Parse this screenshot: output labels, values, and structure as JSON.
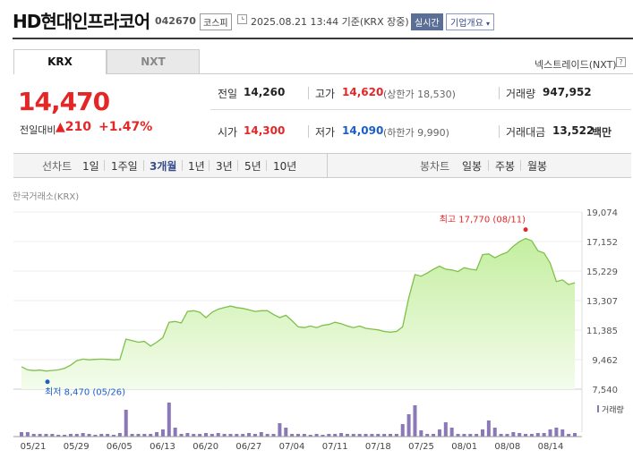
{
  "header": {
    "name": "HD현대인프라코어",
    "code": "042670",
    "market": "코스피",
    "datetime": "2025.08.21 13:44 기준(KRX 장중)",
    "realtime": "실시간",
    "overview": "기업개요",
    "overview_icon": "chevron-down-icon"
  },
  "tabs": [
    {
      "label": "KRX",
      "active": true
    },
    {
      "label": "NXT",
      "active": false
    }
  ],
  "nextrade": "넥스트레이드(NXT)",
  "help_icon": "?",
  "quote": {
    "price": "14,470",
    "change_label": "전일대비",
    "change": "▲210",
    "change_pct": "+1.47%",
    "prev_close_label": "전일",
    "prev_close": "14,260",
    "high_label": "고가",
    "high": "14,620",
    "upper_limit": "(상한가 18,530)",
    "volume_label": "거래량",
    "volume": "947,952",
    "open_label": "시가",
    "open": "14,300",
    "low_label": "저가",
    "low": "14,090",
    "lower_limit": "(하한가 9,990)",
    "value_label": "거래대금",
    "value": "13,522",
    "value_unit": "백만"
  },
  "period": {
    "line_label": "선차트",
    "line_options": [
      "1일",
      "1주일",
      "3개월",
      "1년",
      "3년",
      "5년",
      "10년"
    ],
    "active": "3개월",
    "candle_label": "봉차트",
    "candle_options": [
      "일봉",
      "주봉",
      "월봉"
    ]
  },
  "source_label": "한국거래소(KRX)",
  "colors": {
    "up": "#e42626",
    "down": "#1a5ec7",
    "line": "#7fc04a",
    "volume": "#8a78b8"
  },
  "chart_data": {
    "type": "area",
    "y_ticks": [
      "19,074",
      "17,152",
      "15,229",
      "13,307",
      "11,385",
      "9,462",
      "7,540"
    ],
    "ylim": [
      7540,
      19074
    ],
    "x_ticks": [
      "05/21",
      "05/29",
      "06/05",
      "06/13",
      "06/20",
      "06/27",
      "07/04",
      "07/11",
      "07/18",
      "07/25",
      "08/01",
      "08/08",
      "08/14"
    ],
    "max_label": "최고 17,770 (08/11)",
    "min_label": "최저 8,470 (05/26)",
    "volume_legend": "거래량",
    "values": [
      9000,
      8800,
      8750,
      8780,
      8720,
      8760,
      8800,
      8900,
      9100,
      9400,
      9500,
      9450,
      9480,
      9500,
      9480,
      9450,
      9470,
      10800,
      10700,
      10600,
      10650,
      10350,
      10600,
      10900,
      11900,
      11950,
      11850,
      12600,
      12650,
      12550,
      12200,
      12550,
      12750,
      12850,
      12950,
      12850,
      12800,
      12700,
      12600,
      12650,
      12650,
      12400,
      12200,
      12350,
      12000,
      11600,
      11550,
      11650,
      11550,
      11700,
      11750,
      11900,
      11800,
      11650,
      11550,
      11650,
      11500,
      11450,
      11400,
      11300,
      11250,
      11300,
      11600,
      13500,
      15000,
      14900,
      15100,
      15350,
      15550,
      15350,
      15300,
      15200,
      15450,
      15350,
      15300,
      16300,
      16350,
      16100,
      16300,
      16450,
      16850,
      17150,
      17350,
      17200,
      16550,
      16400,
      15750,
      14550,
      14650,
      14350,
      14470
    ],
    "volumes": [
      5,
      5,
      3,
      3,
      3,
      3,
      2,
      2,
      3,
      3,
      4,
      3,
      2,
      3,
      3,
      2,
      4,
      30,
      3,
      3,
      3,
      3,
      5,
      8,
      38,
      10,
      3,
      4,
      3,
      3,
      4,
      3,
      4,
      3,
      3,
      3,
      3,
      4,
      3,
      5,
      3,
      3,
      15,
      10,
      3,
      3,
      3,
      2,
      3,
      2,
      3,
      3,
      4,
      3,
      3,
      3,
      3,
      3,
      3,
      3,
      3,
      3,
      14,
      25,
      35,
      7,
      3,
      3,
      8,
      16,
      10,
      3,
      3,
      3,
      3,
      8,
      18,
      10,
      3,
      3,
      5,
      4,
      3,
      3,
      4,
      4,
      8,
      10,
      8,
      3,
      4
    ]
  }
}
